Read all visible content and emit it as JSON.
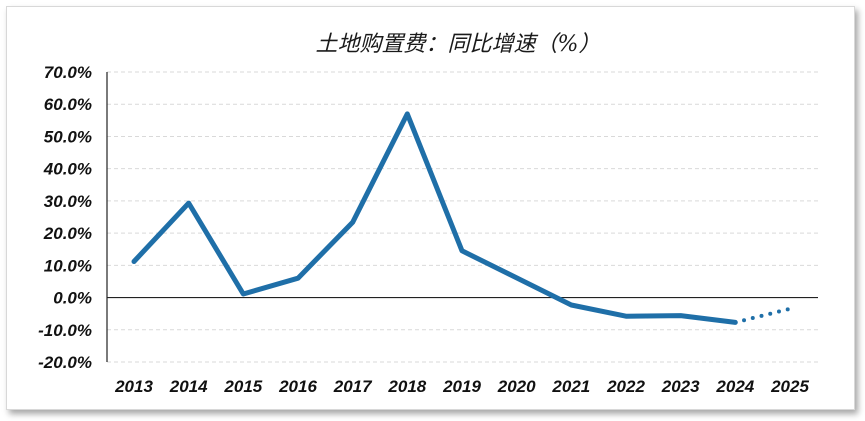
{
  "chart_data": {
    "type": "line",
    "title": "土地购置费：同比增速（%）",
    "xlabel": "",
    "ylabel": "",
    "ylim": [
      -20,
      70
    ],
    "ytick_step": 10,
    "ytick_labels": [
      "-20.0%",
      "-10.0%",
      "0.0%",
      "10.0%",
      "20.0%",
      "30.0%",
      "40.0%",
      "50.0%",
      "60.0%",
      "70.0%"
    ],
    "grid": true,
    "legend": "none",
    "categories": [
      "2013",
      "2014",
      "2015",
      "2016",
      "2017",
      "2018",
      "2019",
      "2020",
      "2021",
      "2022",
      "2023",
      "2024",
      "2025"
    ],
    "series": [
      {
        "values": [
          11.2,
          29.3,
          1.1,
          6.0,
          23.4,
          57.0,
          14.5,
          6.1,
          -2.3,
          -5.8,
          -5.6,
          -7.7,
          null
        ],
        "color": "#1f6fa8",
        "style": "solid"
      },
      {
        "values": [
          null,
          null,
          null,
          null,
          null,
          null,
          null,
          null,
          null,
          null,
          null,
          -7.7,
          -3.5
        ],
        "color": "#1f6fa8",
        "style": "dotted"
      }
    ]
  }
}
